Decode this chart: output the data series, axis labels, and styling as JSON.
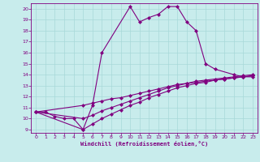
{
  "xlabel": "Windchill (Refroidissement éolien,°C)",
  "bg_color": "#c8ecec",
  "line_color": "#800080",
  "grid_color": "#a8d8d8",
  "xlim": [
    -0.5,
    23.5
  ],
  "ylim": [
    8.7,
    20.5
  ],
  "xticks": [
    0,
    1,
    2,
    3,
    4,
    5,
    6,
    7,
    8,
    9,
    10,
    11,
    12,
    13,
    14,
    15,
    16,
    17,
    18,
    19,
    20,
    21,
    22,
    23
  ],
  "yticks": [
    9,
    10,
    11,
    12,
    13,
    14,
    15,
    16,
    17,
    18,
    19,
    20
  ],
  "main_x": [
    0,
    1,
    2,
    3,
    4,
    5,
    6,
    7,
    10,
    11,
    12,
    13,
    14,
    15,
    16,
    17,
    18,
    19,
    21,
    22,
    23
  ],
  "main_y": [
    10.6,
    10.6,
    10.2,
    10.0,
    10.0,
    9.0,
    11.2,
    16.0,
    20.2,
    18.8,
    19.2,
    19.5,
    20.2,
    20.2,
    18.8,
    18.0,
    15.0,
    14.5,
    14.0,
    13.8,
    13.8
  ],
  "line1_x": [
    0,
    5,
    6,
    7,
    8,
    9,
    10,
    11,
    12,
    13,
    14,
    15,
    16,
    17,
    18,
    19,
    20,
    21,
    22,
    23
  ],
  "line1_y": [
    10.6,
    10.0,
    10.3,
    10.7,
    11.0,
    11.3,
    11.6,
    11.9,
    12.2,
    12.5,
    12.8,
    13.0,
    13.2,
    13.3,
    13.4,
    13.5,
    13.6,
    13.7,
    13.8,
    13.9
  ],
  "line2_x": [
    0,
    5,
    6,
    7,
    8,
    9,
    10,
    11,
    12,
    13,
    14,
    15,
    16,
    17,
    18,
    19,
    20,
    21,
    22,
    23
  ],
  "line2_y": [
    10.6,
    9.0,
    9.5,
    10.0,
    10.4,
    10.8,
    11.2,
    11.5,
    11.9,
    12.2,
    12.5,
    12.8,
    13.0,
    13.2,
    13.3,
    13.5,
    13.6,
    13.7,
    13.8,
    13.9
  ],
  "line3_x": [
    0,
    5,
    6,
    7,
    8,
    9,
    10,
    11,
    12,
    13,
    14,
    15,
    16,
    17,
    18,
    19,
    20,
    21,
    22,
    23
  ],
  "line3_y": [
    10.6,
    11.2,
    11.4,
    11.6,
    11.8,
    11.9,
    12.1,
    12.3,
    12.5,
    12.7,
    12.9,
    13.1,
    13.2,
    13.4,
    13.5,
    13.6,
    13.7,
    13.8,
    13.9,
    14.0
  ]
}
